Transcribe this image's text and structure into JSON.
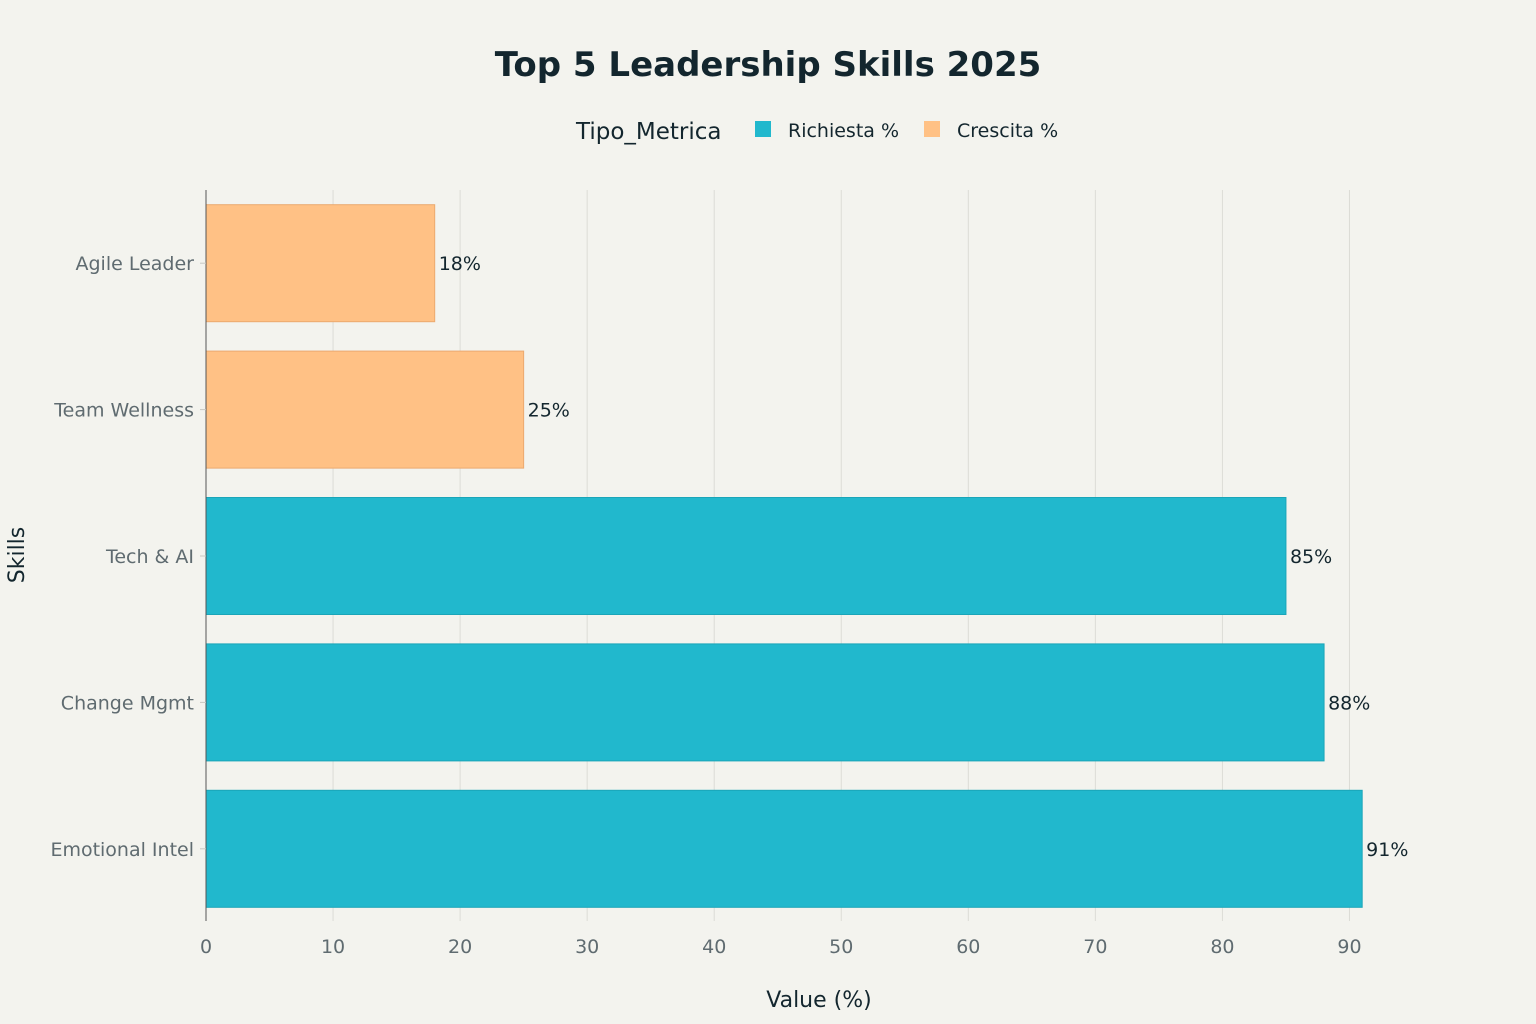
{
  "chart_data": {
    "type": "bar",
    "orientation": "horizontal",
    "title": "Top 5 Leadership Skills 2025",
    "xlabel": "Value (%)",
    "ylabel": "Skills",
    "xlim": [
      0,
      95
    ],
    "xticks": [
      0,
      10,
      20,
      30,
      40,
      50,
      60,
      70,
      80,
      90
    ],
    "grid": "vertical",
    "legend": {
      "title": "Tipo_Metrica",
      "placement": "top-center",
      "entries": [
        {
          "name": "Richiesta %",
          "color": "#21b8cd"
        },
        {
          "name": "Crescita %",
          "color": "#ffc185"
        }
      ]
    },
    "categories": [
      "Agile Leader",
      "Team Wellness",
      "Tech & AI",
      "Change Mgmt",
      "Emotional Intel"
    ],
    "bars": [
      {
        "category": "Agile Leader",
        "value": 18,
        "series": "Crescita %",
        "label": "18%"
      },
      {
        "category": "Team Wellness",
        "value": 25,
        "series": "Crescita %",
        "label": "25%"
      },
      {
        "category": "Tech & AI",
        "value": 85,
        "series": "Richiesta %",
        "label": "85%"
      },
      {
        "category": "Change Mgmt",
        "value": 88,
        "series": "Richiesta %",
        "label": "88%"
      },
      {
        "category": "Emotional Intel",
        "value": 91,
        "series": "Richiesta %",
        "label": "91%"
      }
    ],
    "colors": {
      "Richiesta %": "#21b8cd",
      "Crescita %": "#ffc185",
      "Richiesta % border": "#1aa5b8",
      "Crescita % border": "#eba96f"
    }
  }
}
